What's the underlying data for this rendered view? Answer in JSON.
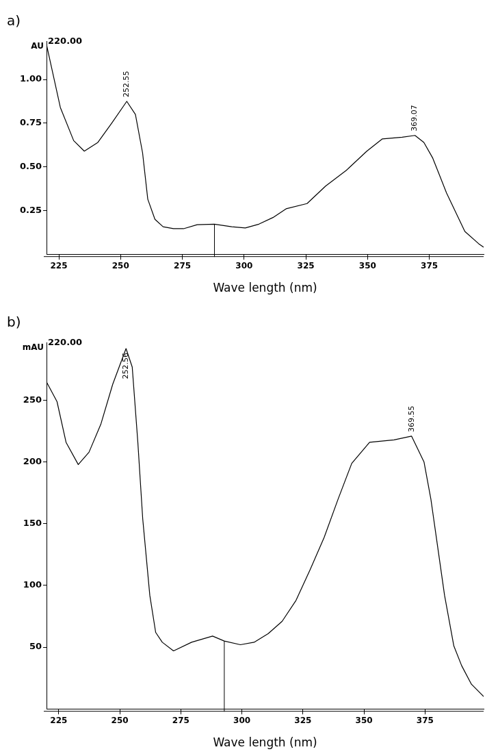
{
  "chart_data": [
    {
      "type": "line",
      "title": "a)",
      "xlabel": "Wave length (nm)",
      "ylabel": "AU",
      "color": "#000000",
      "x": [
        220,
        225.6,
        231,
        235.3,
        240.8,
        246.4,
        252.5,
        256,
        258.9,
        261,
        263.9,
        267.2,
        271.4,
        275.5,
        281,
        288,
        295,
        300.5,
        306,
        311.7,
        317,
        325.5,
        333,
        341.4,
        349.7,
        356,
        364,
        369.2,
        372.8,
        376.4,
        382,
        389.4,
        395,
        397
      ],
      "values": [
        1.2,
        0.84,
        0.65,
        0.59,
        0.64,
        0.75,
        0.875,
        0.8,
        0.58,
        0.315,
        0.2,
        0.157,
        0.146,
        0.146,
        0.169,
        0.172,
        0.157,
        0.15,
        0.172,
        0.21,
        0.26,
        0.29,
        0.39,
        0.48,
        0.59,
        0.66,
        0.67,
        0.68,
        0.64,
        0.55,
        0.35,
        0.13,
        0.06,
        0.04
      ],
      "xlim": [
        220,
        397
      ],
      "xticks": [
        225,
        250,
        275,
        300,
        325,
        350,
        375
      ],
      "ylim": [
        0,
        1.22
      ],
      "yticks": [
        {
          "value": 0.25,
          "label": "0.25"
        },
        {
          "value": 0.5,
          "label": "0.50"
        },
        {
          "value": 0.75,
          "label": "0.75"
        },
        {
          "value": 1,
          "label": "1.00"
        }
      ],
      "ref_lines": [
        {
          "axis": "x",
          "value": 288
        }
      ],
      "annotations": [
        "220.00",
        {
          "text": "252.55",
          "x": 252.55,
          "y": 0.875
        },
        {
          "text": "369.07",
          "x": 369.07,
          "y": 0.68
        }
      ]
    },
    {
      "type": "line",
      "title": "b)",
      "xlabel": "Wave length (nm)",
      "ylabel": "mAU",
      "color": "#000000",
      "x": [
        220,
        224.3,
        228,
        233,
        237.4,
        242.3,
        247.1,
        252.56,
        255.1,
        257.4,
        259.4,
        262.3,
        264.7,
        267.4,
        272,
        279.4,
        288,
        292.8,
        299.4,
        305,
        310.8,
        316.5,
        322.2,
        328,
        333.7,
        339.4,
        345,
        352.3,
        362.3,
        369.5,
        374.6,
        377.4,
        383,
        386.8,
        390,
        394,
        399
      ],
      "values": [
        265,
        249,
        216,
        198,
        208,
        231,
        263,
        292,
        277,
        216,
        154,
        92,
        62,
        54,
        47,
        54,
        59,
        55,
        52,
        54,
        61,
        71,
        88,
        113,
        139,
        170,
        199,
        216,
        218,
        221,
        200,
        170,
        92,
        51,
        35,
        20,
        10
      ],
      "xlim": [
        220,
        399
      ],
      "xticks": [
        225,
        250,
        275,
        300,
        325,
        350,
        375
      ],
      "ylim": [
        0,
        297
      ],
      "yticks": [
        50,
        100,
        150,
        200,
        250
      ],
      "ref_lines": [
        {
          "axis": "x",
          "value": 292.8
        }
      ],
      "annotations": [
        "220.00",
        {
          "text": "252.56",
          "x": 252.56,
          "y": 292
        },
        {
          "text": "369.55",
          "x": 369.55,
          "y": 221
        }
      ]
    }
  ]
}
